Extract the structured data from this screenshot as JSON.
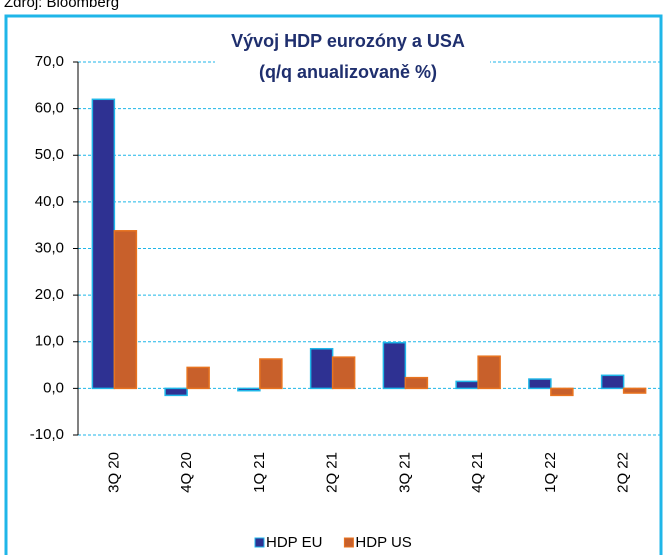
{
  "source": "Zdroj: Bloomberg",
  "chart_data": {
    "type": "bar",
    "title": "Vývoj HDP eurozóny a USA",
    "subtitle": "(q/q anualizovaně %)",
    "categories": [
      "3Q 20",
      "4Q 20",
      "1Q 21",
      "2Q 21",
      "3Q 21",
      "4Q 21",
      "1Q 22",
      "2Q 22"
    ],
    "series": [
      {
        "name": "HDP EU",
        "color": "#2e3192",
        "values": [
          62.0,
          -1.5,
          -0.5,
          8.5,
          9.8,
          1.5,
          2.0,
          2.8
        ]
      },
      {
        "name": "HDP US",
        "color": "#c8602b",
        "values": [
          33.8,
          4.5,
          6.3,
          6.7,
          2.3,
          6.9,
          -1.5,
          -1.0
        ]
      }
    ],
    "ylim": [
      -10,
      70
    ],
    "yticks": [
      {
        "value": -10,
        "label": "-10,0"
      },
      {
        "value": 0,
        "label": "0,0"
      },
      {
        "value": 10,
        "label": "10,0"
      },
      {
        "value": 20,
        "label": "20,0"
      },
      {
        "value": 30,
        "label": "30,0"
      },
      {
        "value": 40,
        "label": "40,0"
      },
      {
        "value": 50,
        "label": "50,0"
      },
      {
        "value": 60,
        "label": "60,0"
      },
      {
        "value": 70,
        "label": "70,0"
      }
    ],
    "grid": true
  }
}
